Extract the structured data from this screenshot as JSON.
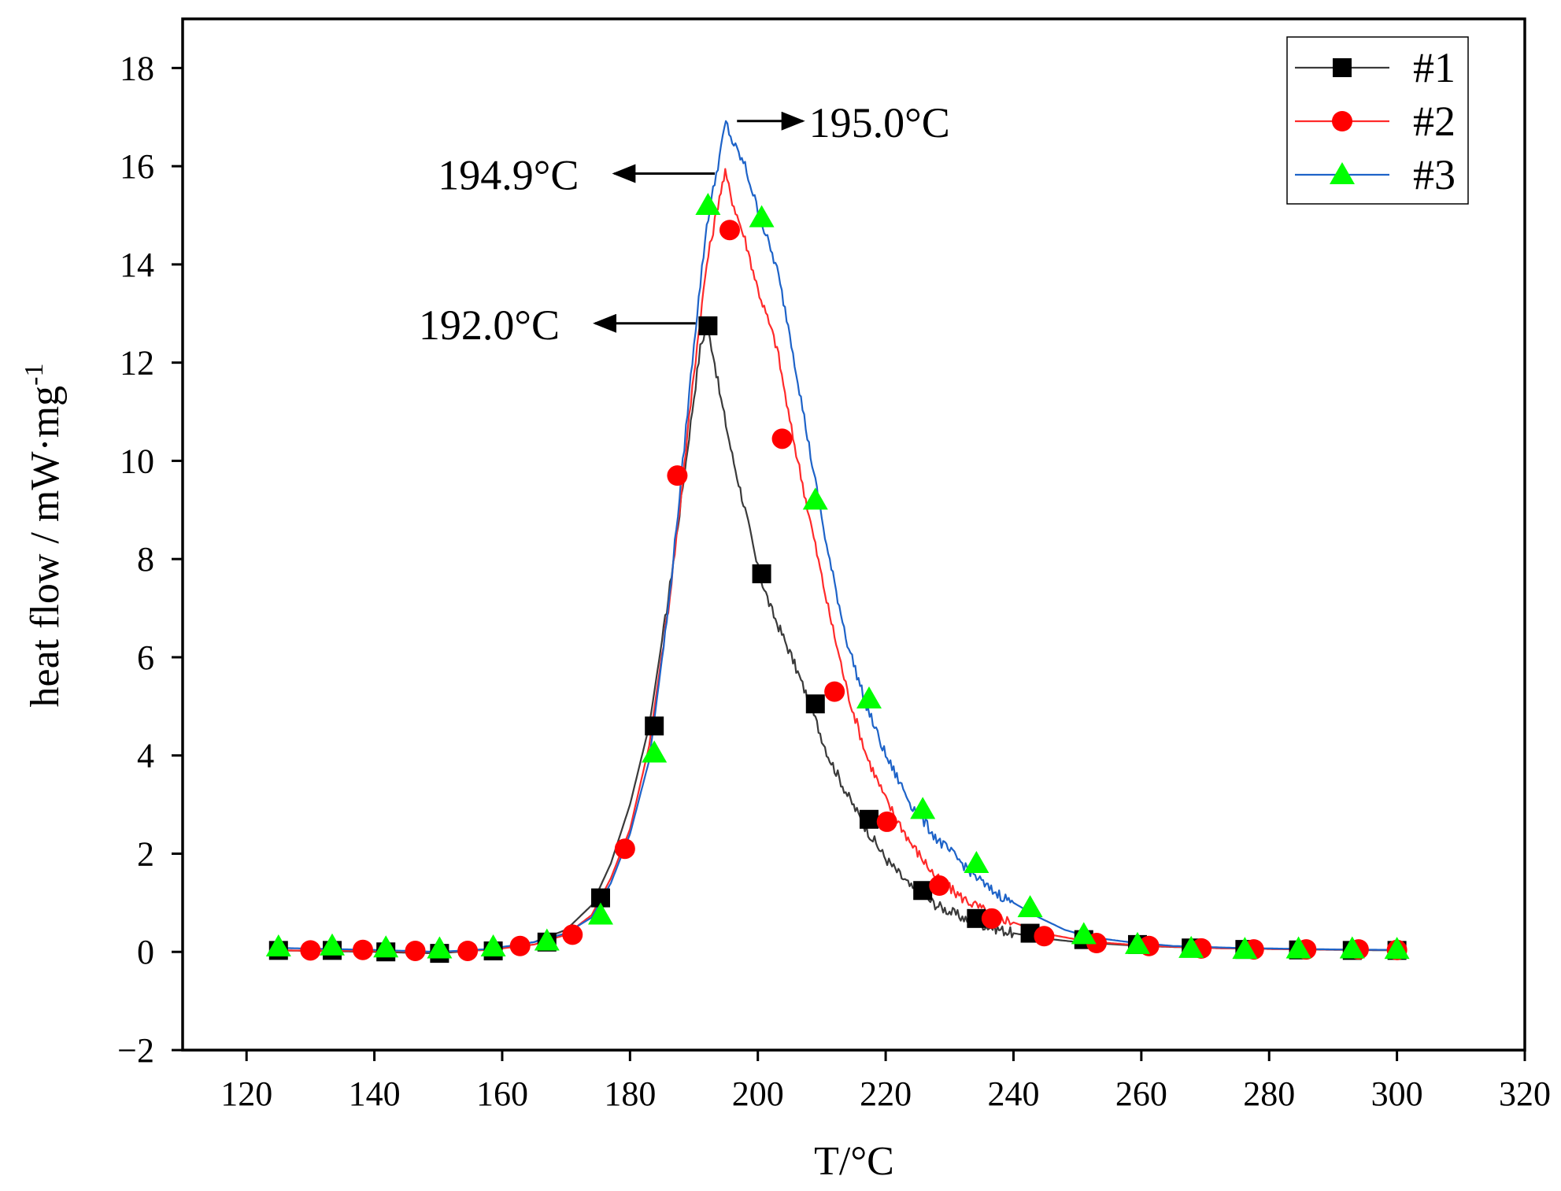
{
  "chart_data": {
    "type": "line",
    "title": "",
    "xlabel": "T/°C",
    "ylabel": "heat flow / mW·mg",
    "ylabel_sup": "-1",
    "xlim": [
      110,
      320
    ],
    "ylim": [
      -2,
      19
    ],
    "xticks": [
      120,
      140,
      160,
      180,
      200,
      220,
      240,
      260,
      280,
      300,
      320
    ],
    "yticks": [
      -2,
      0,
      2,
      4,
      6,
      8,
      10,
      12,
      14,
      16,
      18
    ],
    "ytick_labels": [
      "−2",
      "0",
      "2",
      "4",
      "6",
      "8",
      "10",
      "12",
      "14",
      "16",
      "18"
    ],
    "grid": false,
    "legend_position": "top-right",
    "series": [
      {
        "name": "#1",
        "color": "#000000",
        "line_color": "#3a3a3a",
        "marker": "square",
        "curve": [
          [
            125,
            0.03
          ],
          [
            140,
            0.0
          ],
          [
            150,
            -0.03
          ],
          [
            158,
            0.05
          ],
          [
            165,
            0.2
          ],
          [
            170,
            0.45
          ],
          [
            174,
            0.95
          ],
          [
            177,
            1.8
          ],
          [
            180,
            3.0
          ],
          [
            183,
            4.6
          ],
          [
            186,
            7.2
          ],
          [
            188,
            9.2
          ],
          [
            190,
            11.3
          ],
          [
            191,
            12.3
          ],
          [
            192,
            12.75
          ],
          [
            193,
            12.2
          ],
          [
            194,
            11.4
          ],
          [
            196,
            10.1
          ],
          [
            198,
            9.0
          ],
          [
            200,
            7.8
          ],
          [
            202,
            7.0
          ],
          [
            205,
            6.1
          ],
          [
            208,
            5.1
          ],
          [
            211,
            4.0
          ],
          [
            214,
            3.2
          ],
          [
            217,
            2.5
          ],
          [
            220,
            1.9
          ],
          [
            224,
            1.3
          ],
          [
            228,
            0.95
          ],
          [
            232,
            0.7
          ],
          [
            236,
            0.52
          ],
          [
            240,
            0.38
          ],
          [
            245,
            0.27
          ],
          [
            250,
            0.2
          ],
          [
            260,
            0.12
          ],
          [
            270,
            0.08
          ],
          [
            285,
            0.05
          ],
          [
            300,
            0.03
          ]
        ],
        "markers": [
          [
            125,
            0.03
          ],
          [
            133.4,
            0.03
          ],
          [
            141.8,
            0.0
          ],
          [
            150.2,
            -0.03
          ],
          [
            158.6,
            0.02
          ],
          [
            167,
            0.2
          ],
          [
            175.4,
            1.1
          ],
          [
            183.8,
            4.6
          ],
          [
            192.2,
            12.75
          ],
          [
            200.6,
            7.7
          ],
          [
            209,
            5.05
          ],
          [
            217.4,
            2.7
          ],
          [
            225.8,
            1.25
          ],
          [
            234.2,
            0.68
          ],
          [
            242.6,
            0.38
          ],
          [
            251,
            0.25
          ],
          [
            259.4,
            0.15
          ],
          [
            267.8,
            0.08
          ],
          [
            276.2,
            0.05
          ],
          [
            284.6,
            0.04
          ],
          [
            293,
            0.03
          ],
          [
            300,
            0.03
          ]
        ]
      },
      {
        "name": "#2",
        "color": "#ff0000",
        "line_color": "#ff2a2a",
        "marker": "circle",
        "curve": [
          [
            125,
            0.03
          ],
          [
            140,
            0.02
          ],
          [
            150,
            0.0
          ],
          [
            158,
            0.04
          ],
          [
            165,
            0.15
          ],
          [
            170,
            0.35
          ],
          [
            174,
            0.75
          ],
          [
            177,
            1.5
          ],
          [
            180,
            2.5
          ],
          [
            183,
            4.2
          ],
          [
            186,
            7.0
          ],
          [
            188,
            9.3
          ],
          [
            190,
            11.8
          ],
          [
            192,
            14.0
          ],
          [
            194,
            15.4
          ],
          [
            194.9,
            15.85
          ],
          [
            196,
            15.3
          ],
          [
            198,
            14.5
          ],
          [
            200,
            13.5
          ],
          [
            203,
            12.3
          ],
          [
            205,
            10.8
          ],
          [
            208,
            8.9
          ],
          [
            211,
            7.0
          ],
          [
            214,
            5.3
          ],
          [
            217,
            4.0
          ],
          [
            220,
            3.1
          ],
          [
            224,
            2.2
          ],
          [
            228,
            1.5
          ],
          [
            232,
            1.1
          ],
          [
            236,
            0.8
          ],
          [
            240,
            0.6
          ],
          [
            245,
            0.37
          ],
          [
            250,
            0.25
          ],
          [
            255,
            0.18
          ],
          [
            260,
            0.13
          ],
          [
            270,
            0.08
          ],
          [
            285,
            0.05
          ],
          [
            300,
            0.04
          ]
        ],
        "markers": [
          [
            130,
            0.03
          ],
          [
            138.2,
            0.04
          ],
          [
            146.4,
            0.02
          ],
          [
            154.6,
            0.02
          ],
          [
            162.8,
            0.12
          ],
          [
            171,
            0.35
          ],
          [
            179.2,
            2.1
          ],
          [
            187.4,
            9.7
          ],
          [
            195.6,
            14.7
          ],
          [
            203.8,
            10.45
          ],
          [
            212,
            5.3
          ],
          [
            220.2,
            2.65
          ],
          [
            228.4,
            1.35
          ],
          [
            236.6,
            0.68
          ],
          [
            244.8,
            0.32
          ],
          [
            253,
            0.18
          ],
          [
            261.2,
            0.12
          ],
          [
            269.4,
            0.07
          ],
          [
            277.6,
            0.05
          ],
          [
            285.8,
            0.05
          ],
          [
            294,
            0.05
          ],
          [
            300,
            0.04
          ]
        ]
      },
      {
        "name": "#3",
        "color": "#00ff00",
        "line_color": "#1e63c8",
        "marker": "triangle",
        "curve": [
          [
            125,
            0.08
          ],
          [
            140,
            0.04
          ],
          [
            150,
            0.0
          ],
          [
            158,
            0.06
          ],
          [
            165,
            0.2
          ],
          [
            170,
            0.38
          ],
          [
            174,
            0.7
          ],
          [
            177,
            1.4
          ],
          [
            180,
            2.4
          ],
          [
            183,
            3.9
          ],
          [
            186,
            7.0
          ],
          [
            188,
            9.6
          ],
          [
            190,
            12.4
          ],
          [
            192,
            14.8
          ],
          [
            194,
            16.2
          ],
          [
            195,
            16.9
          ],
          [
            196,
            16.5
          ],
          [
            198,
            16.0
          ],
          [
            200,
            15.1
          ],
          [
            203,
            13.9
          ],
          [
            205,
            12.6
          ],
          [
            208,
            10.3
          ],
          [
            211,
            8.1
          ],
          [
            214,
            6.3
          ],
          [
            217,
            5.0
          ],
          [
            220,
            4.0
          ],
          [
            224,
            3.0
          ],
          [
            228,
            2.3
          ],
          [
            232,
            1.8
          ],
          [
            236,
            1.3
          ],
          [
            240,
            1.0
          ],
          [
            244,
            0.7
          ],
          [
            248,
            0.45
          ],
          [
            252,
            0.3
          ],
          [
            258,
            0.2
          ],
          [
            265,
            0.12
          ],
          [
            275,
            0.08
          ],
          [
            290,
            0.05
          ],
          [
            300,
            0.04
          ]
        ],
        "markers": [
          [
            125,
            0.1
          ],
          [
            133.4,
            0.12
          ],
          [
            141.8,
            0.08
          ],
          [
            150.2,
            0.06
          ],
          [
            158.6,
            0.1
          ],
          [
            167,
            0.22
          ],
          [
            175.4,
            0.75
          ],
          [
            183.8,
            4.05
          ],
          [
            192.2,
            15.2
          ],
          [
            200.6,
            14.95
          ],
          [
            209,
            9.2
          ],
          [
            217.4,
            5.15
          ],
          [
            225.8,
            2.9
          ],
          [
            234.2,
            1.8
          ],
          [
            242.6,
            0.9
          ],
          [
            251,
            0.35
          ],
          [
            259.4,
            0.15
          ],
          [
            267.8,
            0.07
          ],
          [
            276.2,
            0.05
          ],
          [
            284.6,
            0.06
          ],
          [
            293,
            0.06
          ],
          [
            300,
            0.05
          ]
        ]
      }
    ],
    "annotations": [
      {
        "text": "195.0°C",
        "x": 208,
        "y": 16.8,
        "point_x": 196,
        "point_y": 16.92,
        "direction": "right"
      },
      {
        "text": "194.9°C",
        "x": 172,
        "y": 15.8,
        "point_x": 194,
        "point_y": 15.85,
        "direction": "left"
      },
      {
        "text": "192.0°C",
        "x": 169,
        "y": 12.8,
        "point_x": 191,
        "point_y": 12.8,
        "direction": "left"
      }
    ]
  }
}
